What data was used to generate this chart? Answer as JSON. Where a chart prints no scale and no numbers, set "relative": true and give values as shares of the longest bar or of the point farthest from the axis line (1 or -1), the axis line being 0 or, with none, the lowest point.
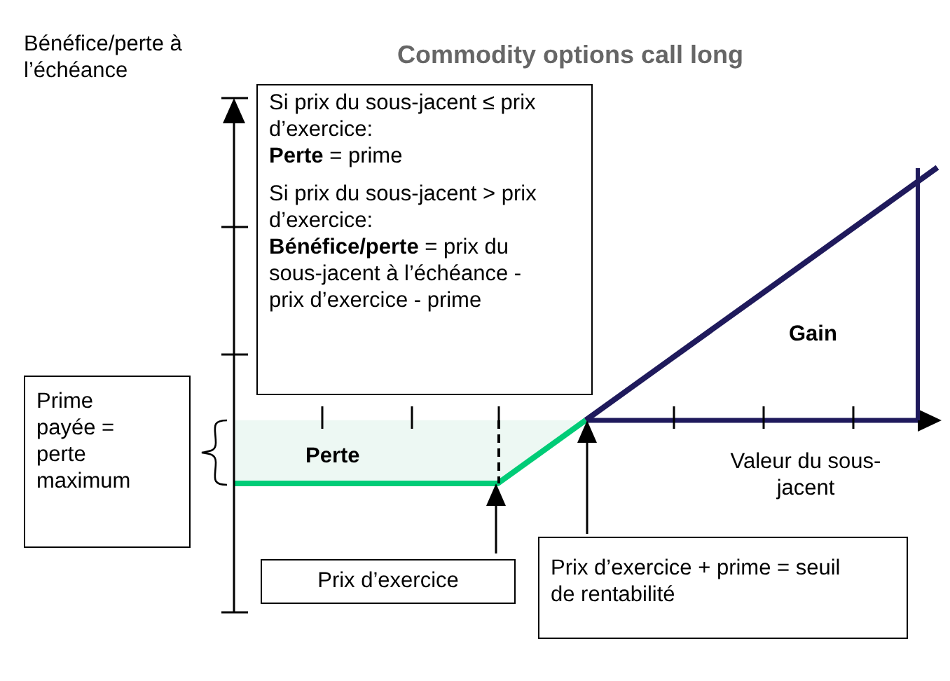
{
  "chart_data": {
    "type": "line",
    "title": "Commodity options call long",
    "ylabel": "Bénéfice/perte à l’échéance",
    "xlabel": "Valeur du sous-jacent",
    "relative": true,
    "categories": [
      null,
      null,
      null,
      null,
      null,
      null,
      null,
      null,
      null
    ],
    "series": [
      {
        "type": "area",
        "color": "#00cc77",
        "values": [
          -0.25,
          -0.25,
          -0.25,
          -0.25,
          0,
          null,
          null,
          null,
          null
        ]
      },
      {
        "type": "line",
        "color": "#1f1a5c",
        "values": [
          null,
          null,
          null,
          null,
          0,
          0.25,
          0.5,
          0.75,
          1
        ]
      }
    ],
    "annotations": [
      "Si prix du sous-jacent ≤ prix d’exercice:",
      "Perte = prime",
      "Si prix du sous-jacent > prix d’exercice:",
      "Bénéfice/perte = prix du sous-jacent à l’échéance - prix d’exercice - prime",
      "Prime payée = perte maximum",
      "Prix d’exercice",
      "Prix d’exercice + prime = seuil de rentabilité",
      "Perte",
      "Gain"
    ],
    "legend": false,
    "marker": "none"
  }
}
